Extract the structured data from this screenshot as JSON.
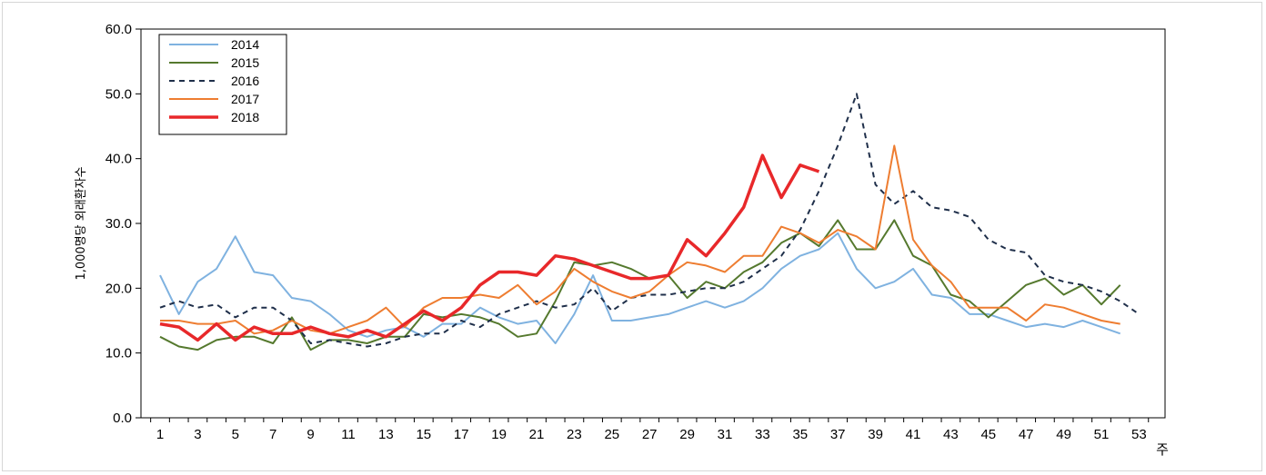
{
  "chart_data": {
    "type": "line",
    "ylabel": "1,000명당 외래환자수",
    "xunit": "주",
    "ylim": [
      0,
      60
    ],
    "yticks": [
      "0.0",
      "10.0",
      "20.0",
      "30.0",
      "40.0",
      "50.0",
      "60.0"
    ],
    "xticks": [
      "1",
      "3",
      "5",
      "7",
      "9",
      "11",
      "13",
      "15",
      "17",
      "19",
      "21",
      "23",
      "25",
      "27",
      "29",
      "31",
      "33",
      "35",
      "37",
      "39",
      "41",
      "43",
      "45",
      "47",
      "49",
      "51",
      "53"
    ],
    "grid": false,
    "legend_position": "top-left",
    "series": [
      {
        "name": "2014",
        "color": "#7fb2e0",
        "dash": "solid",
        "width": "2",
        "x": [
          1,
          2,
          3,
          4,
          5,
          6,
          7,
          8,
          9,
          10,
          11,
          12,
          13,
          14,
          15,
          16,
          17,
          18,
          19,
          20,
          21,
          22,
          23,
          24,
          25,
          26,
          27,
          28,
          29,
          30,
          31,
          32,
          33,
          34,
          35,
          36,
          37,
          38,
          39,
          40,
          41,
          42,
          43,
          44,
          45,
          46,
          47,
          48,
          49,
          50,
          51,
          52
        ],
        "values": [
          22.0,
          16.0,
          21.0,
          23.0,
          28.0,
          22.5,
          22.0,
          18.5,
          18.0,
          16.0,
          13.5,
          12.5,
          13.5,
          14.0,
          12.5,
          14.5,
          14.5,
          17.0,
          15.5,
          14.5,
          15.0,
          11.5,
          16.0,
          22.0,
          15.0,
          15.0,
          15.5,
          16.0,
          17.0,
          18.0,
          17.0,
          18.0,
          20.0,
          23.0,
          25.0,
          26.0,
          28.5,
          23.0,
          20.0,
          21.0,
          23.0,
          19.0,
          18.5,
          16.0,
          16.0,
          15.0,
          14.0,
          14.5,
          14.0,
          15.0,
          14.0,
          13.0
        ]
      },
      {
        "name": "2015",
        "color": "#55792e",
        "dash": "solid",
        "width": "2",
        "x": [
          1,
          2,
          3,
          4,
          5,
          6,
          7,
          8,
          9,
          10,
          11,
          12,
          13,
          14,
          15,
          16,
          17,
          18,
          19,
          20,
          21,
          22,
          23,
          24,
          25,
          26,
          27,
          28,
          29,
          30,
          31,
          32,
          33,
          34,
          35,
          36,
          37,
          38,
          39,
          40,
          41,
          42,
          43,
          44,
          45,
          46,
          47,
          48,
          49,
          50,
          51,
          52
        ],
        "values": [
          12.5,
          11.0,
          10.5,
          12.0,
          12.5,
          12.5,
          11.5,
          15.5,
          10.5,
          12.0,
          12.0,
          11.5,
          12.5,
          12.5,
          16.0,
          15.5,
          16.0,
          15.5,
          14.5,
          12.5,
          13.0,
          18.0,
          24.0,
          23.5,
          24.0,
          23.0,
          21.5,
          22.0,
          18.5,
          21.0,
          20.0,
          22.5,
          24.0,
          27.0,
          28.5,
          26.5,
          30.5,
          26.0,
          26.0,
          30.5,
          25.0,
          23.5,
          19.0,
          18.0,
          15.5,
          18.0,
          20.5,
          21.5,
          19.0,
          20.5,
          17.5,
          20.5
        ]
      },
      {
        "name": "2016",
        "color": "#1f2f4a",
        "dash": "6,5",
        "width": "2",
        "x": [
          1,
          2,
          3,
          4,
          5,
          6,
          7,
          8,
          9,
          10,
          11,
          12,
          13,
          14,
          15,
          16,
          17,
          18,
          19,
          20,
          21,
          22,
          23,
          24,
          25,
          26,
          27,
          28,
          29,
          30,
          31,
          32,
          33,
          34,
          35,
          36,
          37,
          38,
          39,
          40,
          41,
          42,
          43,
          44,
          45,
          46,
          47,
          48,
          49,
          50,
          51,
          52,
          53
        ],
        "values": [
          17.0,
          18.0,
          17.0,
          17.5,
          15.5,
          17.0,
          17.0,
          15.0,
          11.5,
          12.0,
          11.5,
          11.0,
          11.5,
          12.5,
          13.0,
          13.0,
          15.0,
          14.0,
          16.0,
          17.0,
          18.0,
          17.0,
          17.5,
          20.0,
          16.5,
          18.5,
          19.0,
          19.0,
          19.5,
          20.0,
          20.0,
          21.0,
          23.0,
          25.0,
          29.0,
          35.0,
          42.0,
          50.0,
          36.0,
          33.0,
          35.0,
          32.5,
          32.0,
          31.0,
          27.5,
          26.0,
          25.5,
          22.0,
          21.0,
          20.5,
          19.5,
          18.0,
          16.0
        ]
      },
      {
        "name": "2017",
        "color": "#ee7d31",
        "dash": "solid",
        "width": "2",
        "x": [
          1,
          2,
          3,
          4,
          5,
          6,
          7,
          8,
          9,
          10,
          11,
          12,
          13,
          14,
          15,
          16,
          17,
          18,
          19,
          20,
          21,
          22,
          23,
          24,
          25,
          26,
          27,
          28,
          29,
          30,
          31,
          32,
          33,
          34,
          35,
          36,
          37,
          38,
          39,
          40,
          41,
          42,
          43,
          44,
          45,
          46,
          47,
          48,
          49,
          50,
          51,
          52
        ],
        "values": [
          15.0,
          15.0,
          14.5,
          14.5,
          15.0,
          13.0,
          13.5,
          15.0,
          13.5,
          13.0,
          14.0,
          15.0,
          17.0,
          14.0,
          17.0,
          18.5,
          18.5,
          19.0,
          18.5,
          20.5,
          17.5,
          19.5,
          23.0,
          21.0,
          19.5,
          18.5,
          19.5,
          22.0,
          24.0,
          23.5,
          22.5,
          25.0,
          25.0,
          29.5,
          28.5,
          27.0,
          29.0,
          28.0,
          26.0,
          42.0,
          27.5,
          23.5,
          21.0,
          17.0,
          17.0,
          17.0,
          15.0,
          17.5,
          17.0,
          16.0,
          15.0,
          14.5
        ]
      },
      {
        "name": "2018",
        "color": "#e8282a",
        "dash": "solid",
        "width": "3.5",
        "x": [
          1,
          2,
          3,
          4,
          5,
          6,
          7,
          8,
          9,
          10,
          11,
          12,
          13,
          14,
          15,
          16,
          17,
          18,
          19,
          20,
          21,
          22,
          23,
          24,
          25,
          26,
          27,
          28,
          29,
          30,
          31,
          32,
          33,
          34,
          35,
          36
        ],
        "values": [
          14.5,
          14.0,
          12.0,
          14.5,
          12.0,
          14.0,
          13.0,
          13.0,
          14.0,
          13.0,
          12.5,
          13.5,
          12.5,
          14.5,
          16.5,
          15.0,
          17.0,
          20.5,
          22.5,
          22.5,
          22.0,
          25.0,
          24.5,
          23.5,
          22.5,
          21.5,
          21.5,
          22.0,
          27.5,
          25.0,
          28.5,
          32.5,
          40.5,
          34.0,
          39.0,
          38.0
        ]
      }
    ]
  }
}
